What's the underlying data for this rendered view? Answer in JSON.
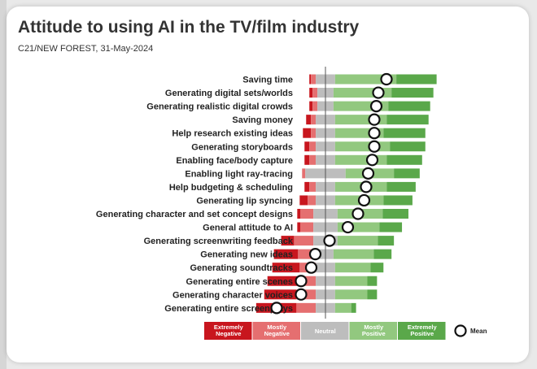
{
  "title": "Attitude to using AI in the TV/film industry",
  "subtitle": "C21/NEW FOREST,  31-May-2024",
  "colors": {
    "extremely_negative": "#c8161e",
    "mostly_negative": "#e56f70",
    "neutral": "#bdbdbd",
    "mostly_positive": "#92c87f",
    "extremely_positive": "#5aa84a"
  },
  "chart_data": {
    "type": "bar",
    "subtype": "diverging-stacked",
    "categories": [
      "Saving time",
      "Generating digital sets/worlds",
      "Generating realistic digital crowds",
      "Saving money",
      "Help research existing ideas",
      "Generating storyboards",
      "Enabling face/body capture",
      "Enabling light ray-tracing",
      "Help budgeting & scheduling",
      "Generating lip syncing",
      "Generating character and set concept designs",
      "General attitude to AI",
      "Generating screenwriting feedback",
      "Generating new ideas",
      "Generating soundtracks",
      "Generating entire scenes",
      "Generating character voices",
      "Generating entire screenplays"
    ],
    "series": [
      {
        "name": "Extremely Negative",
        "values": [
          1,
          2,
          2,
          3,
          5,
          3,
          3,
          0,
          3,
          5,
          2,
          2,
          8,
          15,
          17,
          20,
          20,
          25
        ]
      },
      {
        "name": "Mostly Negative",
        "values": [
          3,
          3,
          3,
          3,
          3,
          4,
          4,
          2,
          4,
          5,
          8,
          8,
          12,
          12,
          10,
          10,
          12,
          12
        ]
      },
      {
        "name": "Neutral",
        "values": [
          12,
          10,
          10,
          12,
          12,
          12,
          12,
          25,
          12,
          12,
          15,
          15,
          15,
          10,
          12,
          12,
          12,
          12
        ]
      },
      {
        "name": "Mostly Positive",
        "values": [
          38,
          36,
          34,
          32,
          30,
          34,
          32,
          30,
          32,
          30,
          28,
          26,
          25,
          25,
          22,
          20,
          20,
          10
        ]
      },
      {
        "name": "Extremely Positive",
        "values": [
          25,
          26,
          26,
          26,
          26,
          22,
          22,
          16,
          18,
          18,
          16,
          14,
          10,
          11,
          8,
          6,
          6,
          3
        ]
      }
    ],
    "mean": [
      1.5,
      1.3,
      1.25,
      1.2,
      1.2,
      1.2,
      1.15,
      1.05,
      1.0,
      0.95,
      0.8,
      0.55,
      0.1,
      -0.25,
      -0.35,
      -0.6,
      -0.6,
      -1.2
    ],
    "mean_range": [
      -3,
      3
    ],
    "legend": {
      "items": [
        {
          "label": "Extremely Negative",
          "color_key": "extremely_negative"
        },
        {
          "label": "Mostly Negative",
          "color_key": "mostly_negative"
        },
        {
          "label": "Neutral",
          "color_key": "neutral"
        },
        {
          "label": "Mostly Positive",
          "color_key": "mostly_positive"
        },
        {
          "label": "Extremely Positive",
          "color_key": "extremely_positive"
        }
      ],
      "mean_label": "Mean",
      "placement": "bottom"
    },
    "grid": false
  }
}
